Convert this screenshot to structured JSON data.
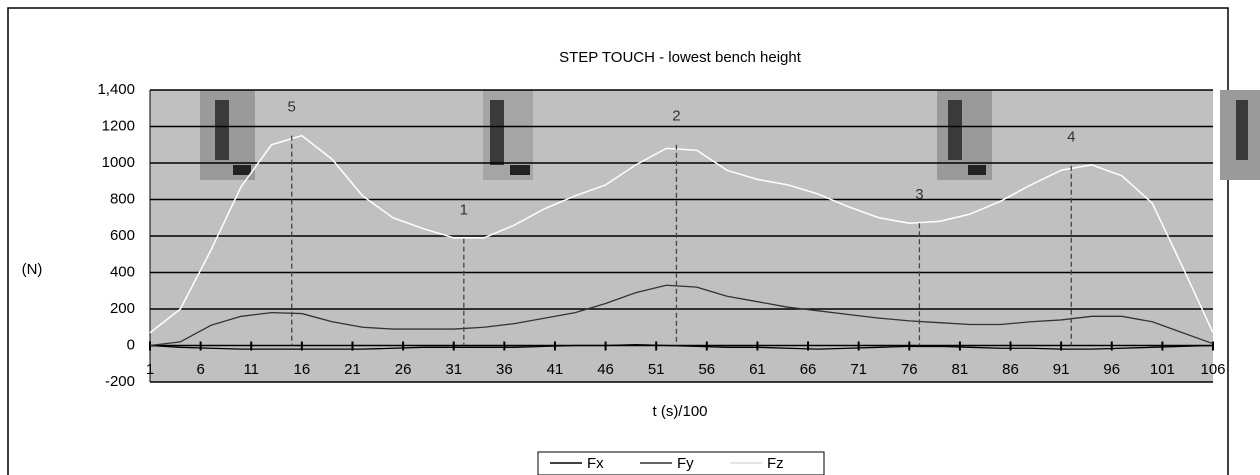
{
  "chart_data": {
    "type": "line",
    "title": "STEP TOUCH - lowest bench height",
    "x_label": "t (s)/100",
    "y_label": "(N)",
    "x": [
      1,
      4,
      7,
      10,
      13,
      16,
      19,
      22,
      25,
      28,
      31,
      34,
      37,
      40,
      43,
      46,
      49,
      52,
      55,
      58,
      61,
      64,
      67,
      70,
      73,
      76,
      79,
      82,
      85,
      88,
      91,
      94,
      97,
      100,
      103,
      106
    ],
    "series": [
      {
        "name": "Fx",
        "color": "#000000",
        "values": [
          0,
          -10,
          -15,
          -20,
          -20,
          -20,
          -20,
          -20,
          -15,
          -10,
          -10,
          -10,
          -10,
          -5,
          0,
          0,
          5,
          0,
          -5,
          -10,
          -10,
          -15,
          -20,
          -15,
          -10,
          -5,
          -5,
          -10,
          -15,
          -15,
          -20,
          -20,
          -15,
          -10,
          -5,
          0
        ]
      },
      {
        "name": "Fy",
        "color": "#333333",
        "values": [
          0,
          20,
          110,
          160,
          180,
          175,
          130,
          100,
          90,
          90,
          90,
          100,
          120,
          150,
          180,
          230,
          290,
          330,
          320,
          270,
          240,
          210,
          190,
          170,
          150,
          135,
          125,
          115,
          115,
          130,
          140,
          160,
          160,
          130,
          70,
          10
        ]
      },
      {
        "name": "Fz",
        "color": "#ffffff",
        "values": [
          70,
          200,
          520,
          870,
          1100,
          1150,
          1020,
          820,
          700,
          640,
          590,
          590,
          660,
          750,
          820,
          880,
          990,
          1080,
          1070,
          960,
          910,
          880,
          830,
          760,
          700,
          670,
          680,
          720,
          790,
          880,
          960,
          990,
          930,
          780,
          430,
          70
        ]
      }
    ],
    "annotations": [
      {
        "label": "5",
        "x": 15,
        "y": 1150
      },
      {
        "label": "1",
        "x": 32,
        "y": 585
      },
      {
        "label": "2",
        "x": 53,
        "y": 1100
      },
      {
        "label": "3",
        "x": 77,
        "y": 670
      },
      {
        "label": "4",
        "x": 92,
        "y": 985
      }
    ],
    "xlim": [
      1,
      106
    ],
    "xticks": [
      1,
      6,
      11,
      16,
      21,
      26,
      31,
      36,
      41,
      46,
      51,
      56,
      61,
      66,
      71,
      76,
      81,
      86,
      91,
      96,
      101,
      106
    ],
    "ylim": [
      -200,
      1400
    ],
    "yticks": [
      -200,
      0,
      200,
      400,
      600,
      800,
      1000,
      1200,
      {
        "value": 1400,
        "label": "1,400"
      }
    ],
    "grid": true
  }
}
